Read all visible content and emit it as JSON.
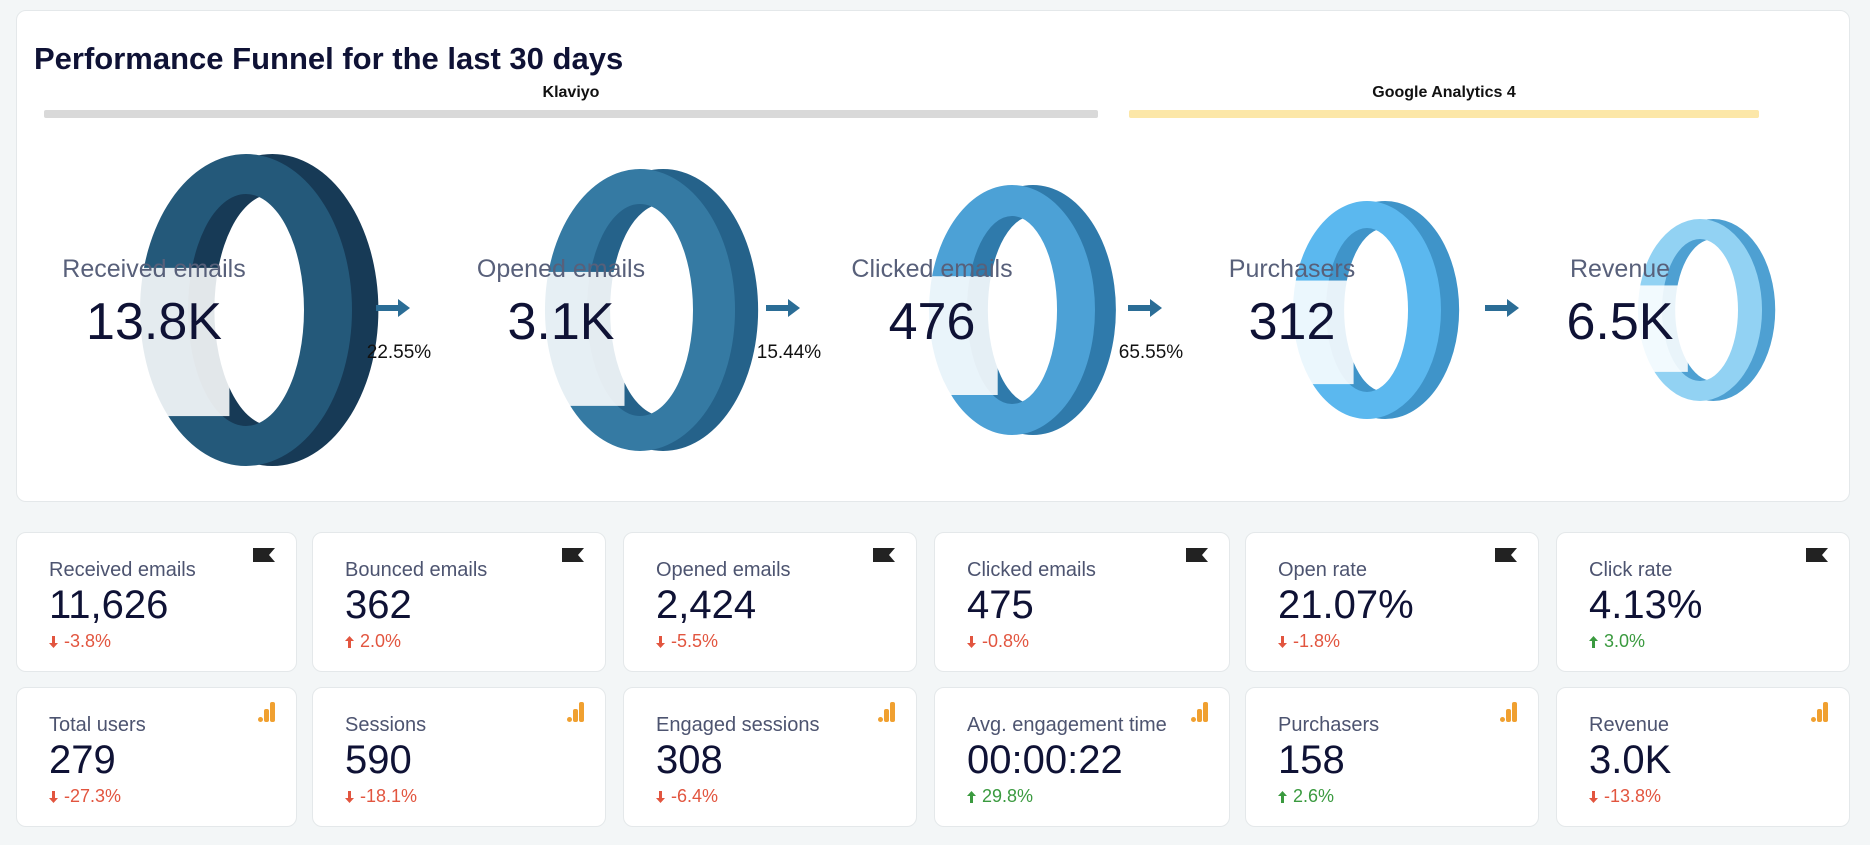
{
  "funnel": {
    "title": "Performance Funnel for the last 30 days",
    "sources": [
      {
        "name": "Klaviyo",
        "color": "#d9d9d9"
      },
      {
        "name": "Google Analytics 4",
        "color": "#fce7a8"
      }
    ],
    "stages": [
      {
        "label": "Received emails",
        "value": "13.8K",
        "ring_color": "#24597a",
        "ring_shadow": "#173a56"
      },
      {
        "label": "Opened emails",
        "value": "3.1K",
        "ring_color": "#357aa3",
        "ring_shadow": "#25628a"
      },
      {
        "label": "Clicked emails",
        "value": "476",
        "ring_color": "#4ca1d6",
        "ring_shadow": "#2f7aab"
      },
      {
        "label": "Purchasers",
        "value": "312",
        "ring_color": "#5bb8ef",
        "ring_shadow": "#3f94c9"
      },
      {
        "label": "Revenue",
        "value": "6.5K",
        "ring_color": "#92d2f3",
        "ring_shadow": "#4ea0d2"
      }
    ],
    "conversions": [
      "22.55%",
      "15.44%",
      "65.55%"
    ],
    "arrow_color": "#2b6d96"
  },
  "kpi_rows": [
    {
      "source_icon": "klaviyo-flag-icon",
      "cards": [
        {
          "label": "Received emails",
          "value": "11,626",
          "delta": "-3.8%",
          "trend": "down"
        },
        {
          "label": "Bounced emails",
          "value": "362",
          "delta": "2.0%",
          "trend": "up",
          "bad": true
        },
        {
          "label": "Opened emails",
          "value": "2,424",
          "delta": "-5.5%",
          "trend": "down"
        },
        {
          "label": "Clicked emails",
          "value": "475",
          "delta": "-0.8%",
          "trend": "down"
        },
        {
          "label": "Open rate",
          "value": "21.07%",
          "delta": "-1.8%",
          "trend": "down"
        },
        {
          "label": "Click rate",
          "value": "4.13%",
          "delta": "3.0%",
          "trend": "up"
        }
      ]
    },
    {
      "source_icon": "google-analytics-icon",
      "cards": [
        {
          "label": "Total users",
          "value": "279",
          "delta": "-27.3%",
          "trend": "down"
        },
        {
          "label": "Sessions",
          "value": "590",
          "delta": "-18.1%",
          "trend": "down"
        },
        {
          "label": "Engaged sessions",
          "value": "308",
          "delta": "-6.4%",
          "trend": "down"
        },
        {
          "label": "Avg. engagement time",
          "value": "00:00:22",
          "delta": "29.8%",
          "trend": "up"
        },
        {
          "label": "Purchasers",
          "value": "158",
          "delta": "2.6%",
          "trend": "up"
        },
        {
          "label": "Revenue",
          "value": "3.0K",
          "delta": "-13.8%",
          "trend": "down"
        }
      ]
    }
  ],
  "colors": {
    "negative": "#e2553f",
    "positive": "#3a9a3f",
    "ga_icon": "#f0a030",
    "flag_icon": "#222222"
  }
}
